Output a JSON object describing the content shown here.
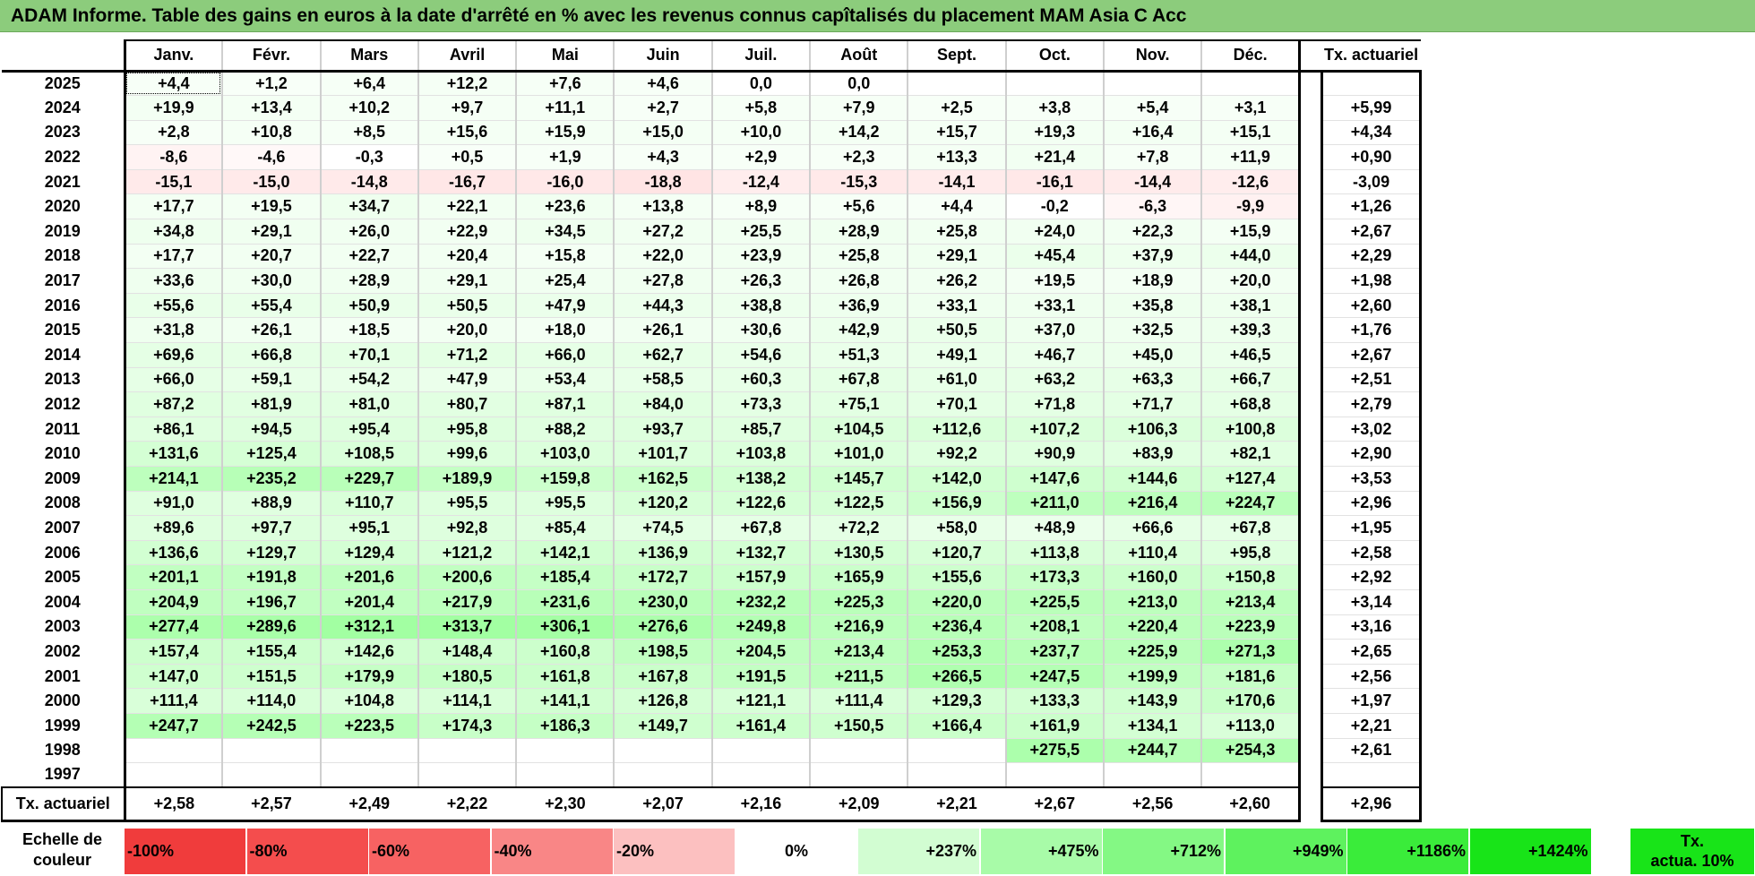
{
  "title": "ADAM Informe. Table des gains en euros à la date d'arrêté en % avec les revenus connus capîtalisés du placement MAM Asia C Acc",
  "months": [
    "Janv.",
    "Févr.",
    "Mars",
    "Avril",
    "Mai",
    "Juin",
    "Juil.",
    "Août",
    "Sept.",
    "Oct.",
    "Nov.",
    "Déc."
  ],
  "rate_header": "Tx. actuariel",
  "rows": [
    {
      "year": "2025",
      "values": [
        "+4,4",
        "+1,2",
        "+6,4",
        "+12,2",
        "+7,6",
        "+4,6",
        "0,0",
        "0,0",
        "",
        "",
        "",
        ""
      ],
      "rate": ""
    },
    {
      "year": "2024",
      "values": [
        "+19,9",
        "+13,4",
        "+10,2",
        "+9,7",
        "+11,1",
        "+2,7",
        "+5,8",
        "+7,9",
        "+2,5",
        "+3,8",
        "+5,4",
        "+3,1"
      ],
      "rate": "+5,99"
    },
    {
      "year": "2023",
      "values": [
        "+2,8",
        "+10,8",
        "+8,5",
        "+15,6",
        "+15,9",
        "+15,0",
        "+10,0",
        "+14,2",
        "+15,7",
        "+19,3",
        "+16,4",
        "+15,1"
      ],
      "rate": "+4,34"
    },
    {
      "year": "2022",
      "values": [
        "-8,6",
        "-4,6",
        "-0,3",
        "+0,5",
        "+1,9",
        "+4,3",
        "+2,9",
        "+2,3",
        "+13,3",
        "+21,4",
        "+7,8",
        "+11,9"
      ],
      "rate": "+0,90"
    },
    {
      "year": "2021",
      "values": [
        "-15,1",
        "-15,0",
        "-14,8",
        "-16,7",
        "-16,0",
        "-18,8",
        "-12,4",
        "-15,3",
        "-14,1",
        "-16,1",
        "-14,4",
        "-12,6"
      ],
      "rate": "-3,09"
    },
    {
      "year": "2020",
      "values": [
        "+17,7",
        "+19,5",
        "+34,7",
        "+22,1",
        "+23,6",
        "+13,8",
        "+8,9",
        "+5,6",
        "+4,4",
        "-0,2",
        "-6,3",
        "-9,9"
      ],
      "rate": "+1,26"
    },
    {
      "year": "2019",
      "values": [
        "+34,8",
        "+29,1",
        "+26,0",
        "+22,9",
        "+34,5",
        "+27,2",
        "+25,5",
        "+28,9",
        "+25,8",
        "+24,0",
        "+22,3",
        "+15,9"
      ],
      "rate": "+2,67"
    },
    {
      "year": "2018",
      "values": [
        "+17,7",
        "+20,7",
        "+22,7",
        "+20,4",
        "+15,8",
        "+22,0",
        "+23,9",
        "+25,8",
        "+29,1",
        "+45,4",
        "+37,9",
        "+44,0"
      ],
      "rate": "+2,29"
    },
    {
      "year": "2017",
      "values": [
        "+33,6",
        "+30,0",
        "+28,9",
        "+29,1",
        "+25,4",
        "+27,8",
        "+26,3",
        "+26,8",
        "+26,2",
        "+19,5",
        "+18,9",
        "+20,0"
      ],
      "rate": "+1,98"
    },
    {
      "year": "2016",
      "values": [
        "+55,6",
        "+55,4",
        "+50,9",
        "+50,5",
        "+47,9",
        "+44,3",
        "+38,8",
        "+36,9",
        "+33,1",
        "+33,1",
        "+35,8",
        "+38,1"
      ],
      "rate": "+2,60"
    },
    {
      "year": "2015",
      "values": [
        "+31,8",
        "+26,1",
        "+18,5",
        "+20,0",
        "+18,0",
        "+26,1",
        "+30,6",
        "+42,9",
        "+50,5",
        "+37,0",
        "+32,5",
        "+39,3"
      ],
      "rate": "+1,76"
    },
    {
      "year": "2014",
      "values": [
        "+69,6",
        "+66,8",
        "+70,1",
        "+71,2",
        "+66,0",
        "+62,7",
        "+54,6",
        "+51,3",
        "+49,1",
        "+46,7",
        "+45,0",
        "+46,5"
      ],
      "rate": "+2,67"
    },
    {
      "year": "2013",
      "values": [
        "+66,0",
        "+59,1",
        "+54,2",
        "+47,9",
        "+53,4",
        "+58,5",
        "+60,3",
        "+67,8",
        "+61,0",
        "+63,2",
        "+63,3",
        "+66,7"
      ],
      "rate": "+2,51"
    },
    {
      "year": "2012",
      "values": [
        "+87,2",
        "+81,9",
        "+81,0",
        "+80,7",
        "+87,1",
        "+84,0",
        "+73,3",
        "+75,1",
        "+70,1",
        "+71,8",
        "+71,7",
        "+68,8"
      ],
      "rate": "+2,79"
    },
    {
      "year": "2011",
      "values": [
        "+86,1",
        "+94,5",
        "+95,4",
        "+95,8",
        "+88,2",
        "+93,7",
        "+85,7",
        "+104,5",
        "+112,6",
        "+107,2",
        "+106,3",
        "+100,8"
      ],
      "rate": "+3,02"
    },
    {
      "year": "2010",
      "values": [
        "+131,6",
        "+125,4",
        "+108,5",
        "+99,6",
        "+103,0",
        "+101,7",
        "+103,8",
        "+101,0",
        "+92,2",
        "+90,9",
        "+83,9",
        "+82,1"
      ],
      "rate": "+2,90"
    },
    {
      "year": "2009",
      "values": [
        "+214,1",
        "+235,2",
        "+229,7",
        "+189,9",
        "+159,8",
        "+162,5",
        "+138,2",
        "+145,7",
        "+142,0",
        "+147,6",
        "+144,6",
        "+127,4"
      ],
      "rate": "+3,53"
    },
    {
      "year": "2008",
      "values": [
        "+91,0",
        "+88,9",
        "+110,7",
        "+95,5",
        "+95,5",
        "+120,2",
        "+122,6",
        "+122,5",
        "+156,9",
        "+211,0",
        "+216,4",
        "+224,7"
      ],
      "rate": "+2,96"
    },
    {
      "year": "2007",
      "values": [
        "+89,6",
        "+97,7",
        "+95,1",
        "+92,8",
        "+85,4",
        "+74,5",
        "+67,8",
        "+72,2",
        "+58,0",
        "+48,9",
        "+66,6",
        "+67,8"
      ],
      "rate": "+1,95"
    },
    {
      "year": "2006",
      "values": [
        "+136,6",
        "+129,7",
        "+129,4",
        "+121,2",
        "+142,1",
        "+136,9",
        "+132,7",
        "+130,5",
        "+120,7",
        "+113,8",
        "+110,4",
        "+95,8"
      ],
      "rate": "+2,58"
    },
    {
      "year": "2005",
      "values": [
        "+201,1",
        "+191,8",
        "+201,6",
        "+200,6",
        "+185,4",
        "+172,7",
        "+157,9",
        "+165,9",
        "+155,6",
        "+173,3",
        "+160,0",
        "+150,8"
      ],
      "rate": "+2,92"
    },
    {
      "year": "2004",
      "values": [
        "+204,9",
        "+196,7",
        "+201,4",
        "+217,9",
        "+231,6",
        "+230,0",
        "+232,2",
        "+225,3",
        "+220,0",
        "+225,5",
        "+213,0",
        "+213,4"
      ],
      "rate": "+3,14"
    },
    {
      "year": "2003",
      "values": [
        "+277,4",
        "+289,6",
        "+312,1",
        "+313,7",
        "+306,1",
        "+276,6",
        "+249,8",
        "+216,9",
        "+236,4",
        "+208,1",
        "+220,4",
        "+223,9"
      ],
      "rate": "+3,16"
    },
    {
      "year": "2002",
      "values": [
        "+157,4",
        "+155,4",
        "+142,6",
        "+148,4",
        "+160,8",
        "+198,5",
        "+204,5",
        "+213,4",
        "+253,3",
        "+237,7",
        "+225,9",
        "+271,3"
      ],
      "rate": "+2,65"
    },
    {
      "year": "2001",
      "values": [
        "+147,0",
        "+151,5",
        "+179,9",
        "+180,5",
        "+161,8",
        "+167,8",
        "+191,5",
        "+211,5",
        "+266,5",
        "+247,5",
        "+199,9",
        "+181,6"
      ],
      "rate": "+2,56"
    },
    {
      "year": "2000",
      "values": [
        "+111,4",
        "+114,0",
        "+104,8",
        "+114,1",
        "+141,1",
        "+126,8",
        "+121,1",
        "+111,4",
        "+129,3",
        "+133,3",
        "+143,9",
        "+170,6"
      ],
      "rate": "+1,97"
    },
    {
      "year": "1999",
      "values": [
        "+247,7",
        "+242,5",
        "+223,5",
        "+174,3",
        "+186,3",
        "+149,7",
        "+161,4",
        "+150,5",
        "+166,4",
        "+161,9",
        "+134,1",
        "+113,0"
      ],
      "rate": "+2,21"
    },
    {
      "year": "1998",
      "values": [
        "",
        "",
        "",
        "",
        "",
        "",
        "",
        "",
        "",
        "+275,5",
        "+244,7",
        "+254,3"
      ],
      "rate": "+2,61"
    },
    {
      "year": "1997",
      "values": [
        "",
        "",
        "",
        "",
        "",
        "",
        "",
        "",
        "",
        "",
        "",
        ""
      ],
      "rate": ""
    }
  ],
  "totals": {
    "label": "Tx. actuariel",
    "values": [
      "+2,58",
      "+2,57",
      "+2,49",
      "+2,22",
      "+2,30",
      "+2,07",
      "+2,16",
      "+2,09",
      "+2,21",
      "+2,67",
      "+2,56",
      "+2,60"
    ],
    "rate": "+2,96"
  },
  "scale": {
    "label": "Echelle de couleur",
    "items": [
      {
        "label": "-100%",
        "color": "#f03c3c"
      },
      {
        "label": "-80%",
        "color": "#f44d4d"
      },
      {
        "label": "-60%",
        "color": "#f76262"
      },
      {
        "label": "-40%",
        "color": "#f98686"
      },
      {
        "label": "-20%",
        "color": "#fcc0c0"
      },
      {
        "label": "0%",
        "color": "#ffffff"
      },
      {
        "label": "+237%",
        "color": "#d2fdd2"
      },
      {
        "label": "+475%",
        "color": "#a8fba8"
      },
      {
        "label": "+712%",
        "color": "#84f884"
      },
      {
        "label": "+949%",
        "color": "#5ef25e"
      },
      {
        "label": "+1186%",
        "color": "#3aec3a"
      },
      {
        "label": "+1424%",
        "color": "#18e418"
      }
    ],
    "rate_label_line1": "Tx.",
    "rate_label_line2": "actua. 10%",
    "rate_color": "#18e418"
  },
  "colors": {
    "title_bg": "#8ccc7c",
    "negative": "#ff6060",
    "positive": "#20e020"
  }
}
